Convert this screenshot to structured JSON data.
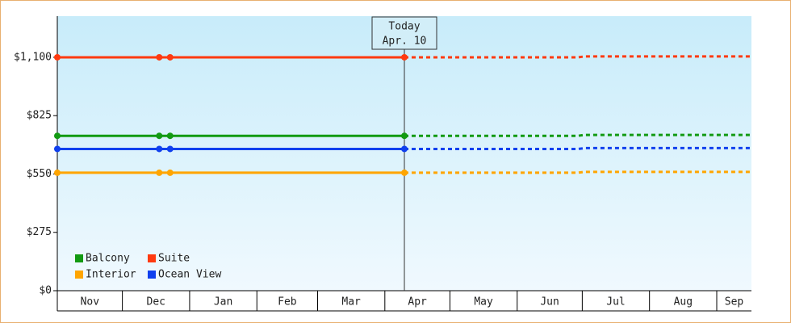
{
  "chart_data": {
    "type": "line",
    "x": [
      0,
      47,
      52,
      160,
      240,
      243,
      320
    ],
    "xlim": [
      0,
      320
    ],
    "xticks": [
      {
        "value": 0,
        "label": "Nov"
      },
      {
        "value": 30,
        "label": "Dec"
      },
      {
        "value": 61,
        "label": "Jan"
      },
      {
        "value": 92,
        "label": "Feb"
      },
      {
        "value": 120,
        "label": "Mar"
      },
      {
        "value": 151,
        "label": "Apr"
      },
      {
        "value": 181,
        "label": "May"
      },
      {
        "value": 212,
        "label": "Jun"
      },
      {
        "value": 242,
        "label": "Jul"
      },
      {
        "value": 273,
        "label": "Aug"
      },
      {
        "value": 304,
        "label": "Sep"
      }
    ],
    "ylim": [
      0,
      1294
    ],
    "yticks": [
      {
        "value": 0,
        "label": "$0"
      },
      {
        "value": 275,
        "label": "$275"
      },
      {
        "value": 550,
        "label": "$550"
      },
      {
        "value": 825,
        "label": "$825"
      },
      {
        "value": 1100,
        "label": "$1,100"
      }
    ],
    "today": {
      "x": 160,
      "title": "Today",
      "label": "Apr. 10"
    },
    "series": [
      {
        "name": "Balcony",
        "color": "#129a12",
        "values": [
          730,
          730,
          730,
          730,
          730,
          734,
          734
        ]
      },
      {
        "name": "Suite",
        "color": "#ff3a10",
        "values": [
          1100,
          1100,
          1100,
          1100,
          1100,
          1104,
          1104
        ]
      },
      {
        "name": "Interior",
        "color": "#ffa500",
        "values": [
          556,
          556,
          556,
          556,
          556,
          560,
          560
        ]
      },
      {
        "name": "Ocean View",
        "color": "#1040ee",
        "values": [
          668,
          668,
          668,
          668,
          668,
          672,
          672
        ]
      }
    ],
    "legend": "bottom-left"
  }
}
